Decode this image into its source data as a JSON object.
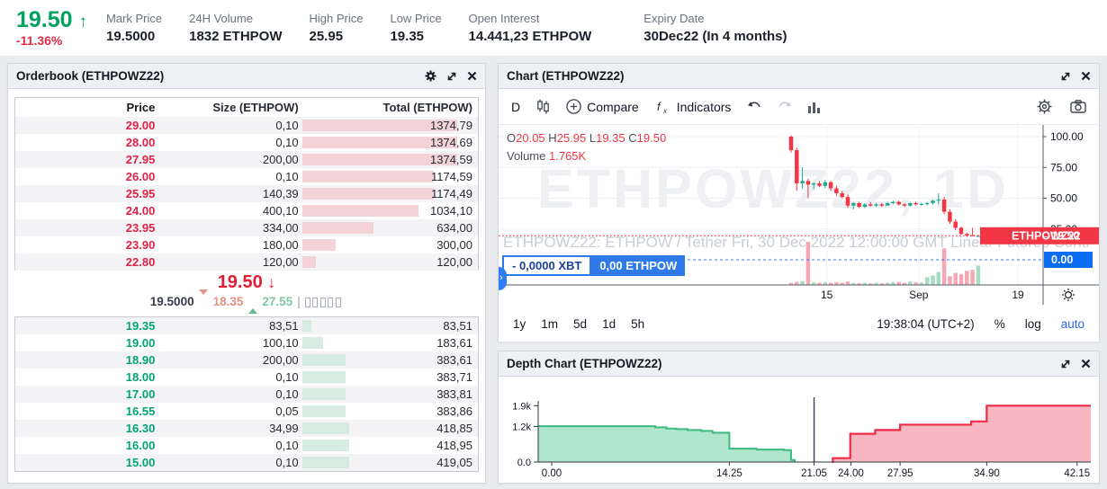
{
  "ticker": {
    "price": "19.50",
    "arrow": "↑",
    "change": "-11.36%"
  },
  "stats": [
    {
      "label": "Mark Price",
      "value": "19.5000"
    },
    {
      "label": "24H Volume",
      "value": "1832 ETHPOW"
    },
    {
      "label": "High Price",
      "value": "25.95"
    },
    {
      "label": "Low Price",
      "value": "19.35"
    },
    {
      "label": "Open Interest",
      "value": "14.441,23 ETHPOW"
    },
    {
      "label": "Expiry Date",
      "value": "30Dec22 (In 4 months)"
    }
  ],
  "orderbook": {
    "title": "Orderbook (ETHPOWZ22)",
    "columns": [
      "Price",
      "Size (ETHPOW)",
      "Total (ETHPOW)"
    ],
    "asks": [
      {
        "price": "29.00",
        "size": "0,10",
        "total": "1374,79",
        "depth": 1.0
      },
      {
        "price": "28.00",
        "size": "0,10",
        "total": "1374,69",
        "depth": 1.0
      },
      {
        "price": "27.95",
        "size": "200,00",
        "total": "1374,59",
        "depth": 1.0
      },
      {
        "price": "26.00",
        "size": "0,10",
        "total": "1174,59",
        "depth": 0.854
      },
      {
        "price": "25.95",
        "size": "140,39",
        "total": "1174,49",
        "depth": 0.854
      },
      {
        "price": "24.00",
        "size": "400,10",
        "total": "1034,10",
        "depth": 0.752
      },
      {
        "price": "23.95",
        "size": "334,00",
        "total": "634,00",
        "depth": 0.461
      },
      {
        "price": "23.90",
        "size": "180,00",
        "total": "300,00",
        "depth": 0.218
      },
      {
        "price": "22.80",
        "size": "120,00",
        "total": "120,00",
        "depth": 0.087
      }
    ],
    "mid": {
      "last": "19.50",
      "arrow": "↓",
      "mark": "19.5000",
      "low": "18.35",
      "high": "27.55",
      "gauge_boxes": 5
    },
    "bids": [
      {
        "price": "19.35",
        "size": "83,51",
        "total": "83,51",
        "depth": 0.061
      },
      {
        "price": "19.00",
        "size": "100,10",
        "total": "183,61",
        "depth": 0.134
      },
      {
        "price": "18.90",
        "size": "200,00",
        "total": "383,61",
        "depth": 0.279
      },
      {
        "price": "18.00",
        "size": "0,10",
        "total": "383,71",
        "depth": 0.279
      },
      {
        "price": "17.00",
        "size": "0,10",
        "total": "383,81",
        "depth": 0.279
      },
      {
        "price": "16.55",
        "size": "0,05",
        "total": "383,86",
        "depth": 0.279
      },
      {
        "price": "16.30",
        "size": "34,99",
        "total": "418,85",
        "depth": 0.305
      },
      {
        "price": "16.00",
        "size": "0,10",
        "total": "418,95",
        "depth": 0.305
      },
      {
        "price": "15.00",
        "size": "0,10",
        "total": "419,05",
        "depth": 0.305
      }
    ]
  },
  "chart": {
    "title": "Chart (ETHPOWZ22)",
    "toolbar": {
      "interval": "D",
      "compare": "Compare",
      "indicators": "Indicators"
    },
    "legend": {
      "o_label": "O",
      "o": "20.05",
      "h_label": "H",
      "h": "25.95",
      "l_label": "L",
      "l": "19.35",
      "c_label": "C",
      "c": "19.50",
      "volume_label": "Volume",
      "volume": "1.765K"
    },
    "watermark": "ETHPOWZ22, 1D",
    "description": "ETHPOWZ22: ETHPOW / Tether Fri, 30 Dec 2022 12:00:00 GMT Linear Futures Contract",
    "badges": {
      "xbt": "- 0,0000 XBT",
      "ethpow": "0,00 ETHPOW",
      "symbol": "ETHPOWZ22",
      "last": "19.50",
      "zero": "0.00"
    },
    "footer": {
      "ranges": [
        "1y",
        "1m",
        "5d",
        "1d",
        "5h"
      ],
      "clock": "19:38:04 (UTC+2)",
      "percent": "%",
      "log": "log",
      "auto": "auto"
    }
  },
  "depth": {
    "title": "Depth Chart (ETHPOWZ22)"
  },
  "chart_data": [
    {
      "type": "candlestick",
      "title": "ETHPOWZ22, 1D",
      "interval": "1D",
      "legend_ohlc": {
        "open": 20.05,
        "high": 25.95,
        "low": 19.35,
        "close": 19.5,
        "volume": "1.765K"
      },
      "last_price": 19.5,
      "ylim": [
        0,
        110
      ],
      "y_ticks": [
        100,
        75,
        50,
        25
      ],
      "x_ticks": [
        {
          "label": "15",
          "slot": 6.3
        },
        {
          "label": "Sep",
          "slot": 22.5
        },
        {
          "label": "19",
          "slot": 40
        }
      ],
      "candles": [
        [
          100,
          101,
          87,
          89
        ],
        [
          89,
          91,
          56,
          62
        ],
        [
          62,
          75,
          58,
          64
        ],
        [
          64,
          66,
          50,
          61
        ],
        [
          61,
          63,
          57,
          62
        ],
        [
          62,
          64,
          59,
          60
        ],
        [
          60,
          65,
          58,
          63
        ],
        [
          63,
          64,
          56,
          58
        ],
        [
          58,
          60,
          52,
          54
        ],
        [
          54,
          56,
          50,
          51
        ],
        [
          51,
          53,
          42,
          44
        ],
        [
          44,
          47,
          41,
          46
        ],
        [
          46,
          47,
          42,
          43
        ],
        [
          43,
          46,
          42,
          45
        ],
        [
          45,
          47,
          43,
          44
        ],
        [
          44,
          46,
          43,
          45
        ],
        [
          45,
          46,
          43,
          44
        ],
        [
          44,
          47,
          44,
          46
        ],
        [
          46,
          48,
          45,
          47
        ],
        [
          47,
          48,
          44,
          45
        ],
        [
          45,
          46,
          43,
          44
        ],
        [
          44,
          47,
          43,
          46
        ],
        [
          46,
          47,
          44,
          45
        ],
        [
          45,
          46,
          44,
          45.5
        ],
        [
          45.5,
          47,
          44,
          46
        ],
        [
          46,
          49,
          45,
          48
        ],
        [
          48,
          54,
          45,
          49
        ],
        [
          49,
          51,
          37,
          39
        ],
        [
          39,
          41,
          29,
          31
        ],
        [
          31,
          33,
          24,
          26
        ],
        [
          26,
          27,
          20,
          21
        ],
        [
          21,
          22,
          18.5,
          19.8
        ],
        [
          20.05,
          25.95,
          19.35,
          19.5
        ],
        [
          19.5,
          20.5,
          19,
          19.5
        ]
      ],
      "volumes": [
        0.05,
        0.07,
        0.09,
        1.0,
        0.06,
        0.05,
        0.06,
        0.05,
        0.06,
        0.05,
        0.08,
        0.05,
        0.04,
        0.05,
        0.04,
        0.05,
        0.04,
        0.05,
        0.06,
        0.07,
        0.05,
        0.08,
        0.06,
        0.05,
        0.18,
        0.22,
        0.3,
        0.85,
        0.2,
        0.28,
        0.25,
        0.33,
        0.35,
        0.45
      ]
    },
    {
      "type": "area",
      "title": "Depth Chart (ETHPOWZ22)",
      "xlim": [
        0,
        42.15
      ],
      "ylim": [
        0,
        1.9
      ],
      "y_ticks": [
        {
          "v": 1.9,
          "label": "1.9k"
        },
        {
          "v": 1.2,
          "label": "1.2k"
        },
        {
          "v": 0,
          "label": "0.0"
        }
      ],
      "x_ticks": [
        {
          "v": 0,
          "label": "0.00"
        },
        {
          "v": 14.25,
          "label": "14.25"
        },
        {
          "v": 21.05,
          "label": "21.05"
        },
        {
          "v": 24.0,
          "label": "24.00"
        },
        {
          "v": 27.95,
          "label": "27.95"
        },
        {
          "v": 34.9,
          "label": "34.90"
        },
        {
          "v": 42.15,
          "label": "42.15"
        }
      ],
      "mid_price": 21.05,
      "bids": [
        [
          0,
          1.21
        ],
        [
          7.9,
          1.21
        ],
        [
          8.3,
          1.17
        ],
        [
          9.2,
          1.13
        ],
        [
          10.0,
          1.11
        ],
        [
          10.9,
          1.08
        ],
        [
          12.0,
          1.05
        ],
        [
          12.9,
          0.99
        ],
        [
          14.2,
          0.99
        ],
        [
          14.25,
          0.45
        ],
        [
          16.4,
          0.45
        ],
        [
          16.45,
          0.42
        ],
        [
          18.6,
          0.42
        ],
        [
          18.65,
          0.4
        ],
        [
          19.15,
          0.4
        ],
        [
          19.2,
          0.07
        ],
        [
          19.5,
          0.07
        ],
        [
          19.5,
          0
        ]
      ],
      "asks": [
        [
          22.5,
          0
        ],
        [
          22.55,
          0.13
        ],
        [
          23.9,
          0.13
        ],
        [
          23.95,
          0.95
        ],
        [
          25.9,
          0.95
        ],
        [
          25.95,
          1.08
        ],
        [
          27.9,
          1.08
        ],
        [
          27.95,
          1.26
        ],
        [
          33.6,
          1.26
        ],
        [
          33.65,
          1.37
        ],
        [
          34.85,
          1.37
        ],
        [
          34.9,
          1.9
        ],
        [
          42.15,
          1.9
        ]
      ]
    }
  ],
  "colors": {
    "up_green": "#00a25d",
    "down_red": "#e22e4a",
    "candle_up": "#22ab94",
    "candle_down": "#f23645",
    "vol_up": "#a5dcc4",
    "vol_down": "#f5a7b3",
    "badge_red": "#f23645",
    "badge_blue": "#0a6cf0",
    "accent_blue": "#2e7ae8",
    "depth_bid_fill": "#b0e6cb",
    "depth_bid_line": "#3cba80",
    "depth_ask_fill": "#f8b6c1",
    "depth_ask_line": "#ef2a47",
    "grid": "#eef0f3",
    "axis": "#555b66"
  }
}
